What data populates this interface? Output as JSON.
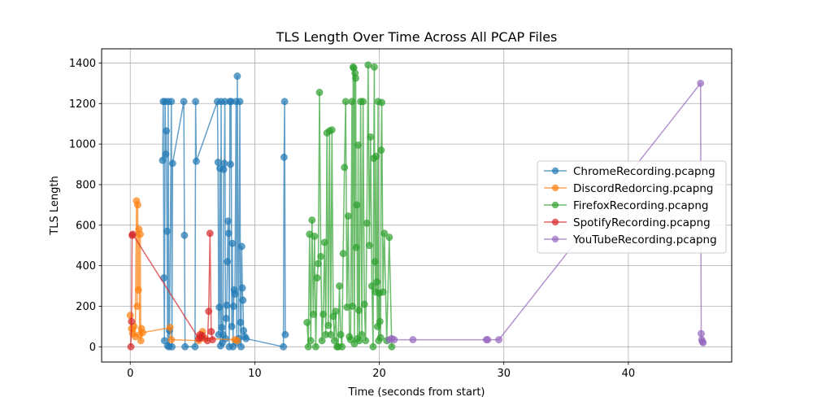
{
  "chart_data": {
    "type": "line",
    "title": "TLS Length Over Time Across All PCAP Files",
    "xlabel": "Time (seconds from start)",
    "ylabel": "TLS Length",
    "xlim": [
      -2.3,
      48.3
    ],
    "ylim": [
      -75,
      1470
    ],
    "xticks": [
      0,
      10,
      20,
      30,
      40
    ],
    "yticks": [
      0,
      200,
      400,
      600,
      800,
      1000,
      1200,
      1400
    ],
    "grid": true,
    "legend_position": "center-right",
    "marker": "circle",
    "series": [
      {
        "name": "ChromeRecording.pcapng",
        "color": "#1f77b4",
        "x": [
          2.6,
          2.65,
          2.7,
          2.75,
          2.8,
          2.85,
          2.9,
          2.95,
          3.0,
          3.05,
          3.1,
          3.15,
          3.3,
          3.35,
          3.4,
          4.3,
          4.35,
          4.4,
          5.2,
          5.25,
          5.3,
          7.0,
          7.05,
          7.1,
          7.15,
          7.2,
          7.25,
          7.3,
          7.35,
          7.4,
          7.45,
          7.5,
          7.55,
          7.6,
          7.65,
          7.7,
          7.75,
          7.8,
          7.85,
          7.9,
          7.95,
          8.0,
          8.05,
          8.1,
          8.15,
          8.2,
          8.25,
          8.3,
          8.35,
          8.4,
          8.5,
          8.55,
          8.6,
          8.7,
          8.8,
          8.85,
          8.9,
          8.95,
          9.0,
          9.05,
          9.1,
          9.2,
          9.3,
          12.3,
          12.35,
          12.4,
          12.45
        ],
        "y": [
          920,
          1210,
          340,
          30,
          1210,
          950,
          1065,
          570,
          5,
          1210,
          0,
          80,
          1210,
          0,
          905,
          1210,
          550,
          0,
          0,
          1210,
          915,
          1210,
          910,
          60,
          195,
          880,
          5,
          1210,
          95,
          20,
          60,
          875,
          905,
          1210,
          40,
          140,
          205,
          420,
          620,
          560,
          0,
          1210,
          900,
          1210,
          100,
          510,
          0,
          200,
          280,
          260,
          1210,
          20,
          1335,
          40,
          1210,
          120,
          0,
          495,
          290,
          230,
          80,
          50,
          40,
          0,
          935,
          1210,
          60
        ]
      },
      {
        "name": "DiscordRedorcing.pcapng",
        "color": "#ff7f0e",
        "x": [
          0.0,
          0.1,
          0.2,
          0.3,
          0.4,
          0.5,
          0.55,
          0.6,
          0.65,
          0.7,
          0.75,
          0.8,
          0.85,
          0.9,
          1.0,
          3.2,
          3.3,
          5.5,
          5.6,
          5.8,
          6.0,
          8.4,
          8.6
        ],
        "y": [
          155,
          90,
          65,
          100,
          50,
          720,
          200,
          700,
          280,
          580,
          60,
          555,
          30,
          90,
          70,
          95,
          35,
          30,
          50,
          75,
          40,
          35,
          30
        ]
      },
      {
        "name": "FirefoxRecording.pcapng",
        "color": "#2ca02c",
        "x": [
          14.2,
          14.3,
          14.4,
          14.5,
          14.6,
          14.7,
          14.8,
          14.9,
          15.0,
          15.1,
          15.2,
          15.3,
          15.4,
          15.5,
          15.6,
          15.7,
          15.8,
          15.9,
          16.0,
          16.1,
          16.2,
          16.3,
          16.4,
          16.5,
          16.6,
          16.7,
          16.8,
          16.9,
          17.0,
          17.1,
          17.2,
          17.3,
          17.4,
          17.5,
          17.6,
          17.7,
          17.8,
          17.85,
          17.9,
          17.95,
          18.0,
          18.05,
          18.1,
          18.15,
          18.2,
          18.25,
          18.3,
          18.35,
          18.4,
          18.5,
          18.6,
          18.7,
          18.8,
          18.9,
          19.0,
          19.1,
          19.2,
          19.3,
          19.4,
          19.5,
          19.55,
          19.6,
          19.65,
          19.7,
          19.75,
          19.8,
          19.85,
          19.9,
          19.95,
          20.0,
          20.05,
          20.1,
          20.15,
          20.2,
          20.3,
          20.4,
          20.6,
          20.8,
          21.0
        ],
        "y": [
          120,
          0,
          555,
          30,
          625,
          160,
          545,
          0,
          340,
          410,
          1255,
          445,
          30,
          160,
          515,
          60,
          1055,
          105,
          1065,
          60,
          1070,
          150,
          30,
          175,
          0,
          0,
          300,
          60,
          0,
          460,
          885,
          1210,
          195,
          645,
          50,
          35,
          1210,
          200,
          1380,
          1375,
          15,
          1350,
          1325,
          490,
          700,
          40,
          995,
          180,
          30,
          1210,
          60,
          1210,
          210,
          30,
          610,
          1390,
          500,
          1035,
          300,
          0,
          930,
          1380,
          420,
          270,
          940,
          320,
          100,
          1210,
          30,
          265,
          125,
          45,
          970,
          1205,
          270,
          560,
          30,
          540,
          0
        ]
      },
      {
        "name": "SpotifyRecording.pcapng",
        "color": "#d62728",
        "x": [
          0.05,
          0.1,
          0.15,
          0.2,
          5.5,
          5.6,
          5.7,
          5.8,
          6.2,
          6.3,
          6.4,
          6.5,
          6.6
        ],
        "y": [
          0,
          125,
          550,
          555,
          40,
          60,
          45,
          55,
          30,
          175,
          560,
          75,
          35
        ]
      },
      {
        "name": "YouTubeRecording.pcapng",
        "color": "#9467bd",
        "x": [
          20.8,
          21.0,
          21.2,
          22.7,
          28.6,
          28.7,
          29.6,
          45.8,
          45.85,
          45.9,
          45.95,
          46.0
        ],
        "y": [
          35,
          40,
          35,
          35,
          35,
          35,
          35,
          1300,
          65,
          35,
          25,
          20
        ]
      }
    ]
  }
}
